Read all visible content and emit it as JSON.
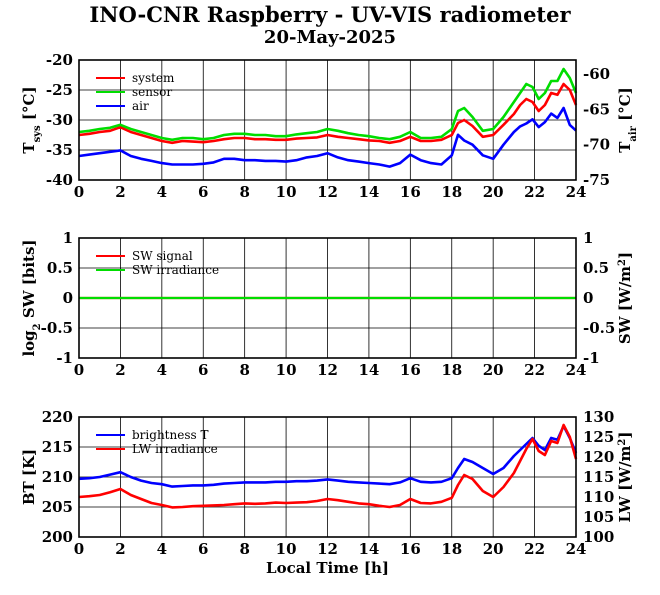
{
  "title": "INO-CNR Raspberry - UV-VIS radiometer",
  "subtitle": "20-May-2025",
  "chart_data": [
    {
      "type": "line",
      "xlabel": "",
      "ylabel": "T_sys [°C]",
      "ylabel_main": "T",
      "ylabel_sub": "sys",
      "ylabel_unit": " [°C]",
      "y2label_main": "T",
      "y2label_sub": "air",
      "y2label_unit": " [°C]",
      "xlim": [
        0,
        24
      ],
      "ylim": [
        -40,
        -20
      ],
      "y2lim": [
        -75,
        -58
      ],
      "xticks": [
        "0",
        "2",
        "4",
        "6",
        "8",
        "10",
        "12",
        "14",
        "16",
        "18",
        "20",
        "22",
        "24"
      ],
      "yticks": [
        "-20",
        "-25",
        "-30",
        "-35",
        "-40"
      ],
      "y2ticks": [
        "-60",
        "-65",
        "-70",
        "-75"
      ],
      "grid": true,
      "legend": "top-left",
      "series": [
        {
          "name": "system",
          "color": "#ff0000",
          "axis": "left",
          "x": [
            0,
            0.5,
            1,
            1.5,
            2,
            2.5,
            3,
            3.5,
            4,
            4.5,
            5,
            5.5,
            6,
            6.5,
            7,
            7.5,
            8,
            8.5,
            9,
            9.5,
            10,
            10.5,
            11,
            11.5,
            12,
            12.5,
            13,
            13.5,
            14,
            14.5,
            15,
            15.5,
            16,
            16.5,
            17,
            17.5,
            18,
            18.3,
            18.6,
            19,
            19.5,
            20,
            20.5,
            21,
            21.3,
            21.6,
            21.9,
            22.2,
            22.5,
            22.8,
            23.1,
            23.4,
            23.7,
            24
          ],
          "y": [
            -32.5,
            -32.3,
            -32,
            -31.8,
            -31.2,
            -32,
            -32.5,
            -33,
            -33.5,
            -33.8,
            -33.5,
            -33.6,
            -33.7,
            -33.5,
            -33.2,
            -33,
            -33,
            -33.2,
            -33.2,
            -33.3,
            -33.3,
            -33.1,
            -33,
            -32.9,
            -32.5,
            -32.8,
            -33,
            -33.2,
            -33.4,
            -33.5,
            -33.8,
            -33.5,
            -32.8,
            -33.5,
            -33.5,
            -33.3,
            -32.5,
            -30.5,
            -30,
            -31,
            -32.8,
            -32.5,
            -30.8,
            -29,
            -27.5,
            -26.5,
            -27,
            -28.5,
            -27.5,
            -25.5,
            -25.8,
            -24,
            -25,
            -27.5
          ]
        },
        {
          "name": "sensor",
          "color": "#00dd00",
          "axis": "left",
          "x": [
            0,
            0.5,
            1,
            1.5,
            2,
            2.5,
            3,
            3.5,
            4,
            4.5,
            5,
            5.5,
            6,
            6.5,
            7,
            7.5,
            8,
            8.5,
            9,
            9.5,
            10,
            10.5,
            11,
            11.5,
            12,
            12.5,
            13,
            13.5,
            14,
            14.5,
            15,
            15.5,
            16,
            16.5,
            17,
            17.5,
            18,
            18.3,
            18.6,
            19,
            19.5,
            20,
            20.5,
            21,
            21.3,
            21.6,
            21.9,
            22.2,
            22.5,
            22.8,
            23.1,
            23.4,
            23.7,
            24
          ],
          "y": [
            -32,
            -31.8,
            -31.5,
            -31.3,
            -30.8,
            -31.5,
            -32,
            -32.5,
            -33,
            -33.3,
            -33,
            -33,
            -33.2,
            -33,
            -32.5,
            -32.3,
            -32.3,
            -32.5,
            -32.5,
            -32.7,
            -32.7,
            -32.4,
            -32.2,
            -32,
            -31.5,
            -31.8,
            -32.2,
            -32.5,
            -32.7,
            -33,
            -33.2,
            -32.8,
            -32,
            -33,
            -33,
            -32.8,
            -31.5,
            -28.5,
            -28,
            -29.5,
            -31.8,
            -31.5,
            -29.5,
            -27,
            -25.5,
            -24,
            -24.5,
            -26.5,
            -25.5,
            -23.5,
            -23.5,
            -21.5,
            -23,
            -25.5
          ]
        },
        {
          "name": "air",
          "color": "#0000ff",
          "axis": "right",
          "x": [
            0,
            0.5,
            1,
            1.5,
            2,
            2.5,
            3,
            3.5,
            4,
            4.5,
            5,
            5.5,
            6,
            6.5,
            7,
            7.5,
            8,
            8.5,
            9,
            9.5,
            10,
            10.5,
            11,
            11.5,
            12,
            12.5,
            13,
            13.5,
            14,
            14.5,
            15,
            15.5,
            16,
            16.5,
            17,
            17.5,
            18,
            18.3,
            18.6,
            19,
            19.5,
            20,
            20.5,
            21,
            21.3,
            21.6,
            21.9,
            22.2,
            22.5,
            22.8,
            23.1,
            23.4,
            23.7,
            24
          ],
          "y": [
            -71.6,
            -71.4,
            -71.2,
            -71,
            -70.8,
            -71.6,
            -72,
            -72.3,
            -72.6,
            -72.8,
            -72.8,
            -72.8,
            -72.7,
            -72.5,
            -72,
            -72,
            -72.2,
            -72.2,
            -72.3,
            -72.3,
            -72.4,
            -72.2,
            -71.8,
            -71.6,
            -71.2,
            -71.8,
            -72.2,
            -72.4,
            -72.6,
            -72.8,
            -73.1,
            -72.6,
            -71.4,
            -72.2,
            -72.6,
            -72.8,
            -71.5,
            -68.6,
            -69.4,
            -70,
            -71.5,
            -72,
            -70,
            -68.2,
            -67.4,
            -67,
            -66.4,
            -67.5,
            -66.8,
            -65.6,
            -66.2,
            -64.8,
            -67.2,
            -68
          ]
        }
      ]
    },
    {
      "type": "line",
      "xlabel": "",
      "ylabel": "log2 SW [bits]",
      "ylabel_main": "log",
      "ylabel_sub": "2",
      "ylabel_unit": " SW [bits]",
      "y2label_main": "SW [W/m",
      "y2label_sup": "2",
      "y2label_unit": "]",
      "xlim": [
        0,
        24
      ],
      "ylim": [
        -1,
        1
      ],
      "y2lim": [
        -1,
        1
      ],
      "xticks": [
        "0",
        "2",
        "4",
        "6",
        "8",
        "10",
        "12",
        "14",
        "16",
        "18",
        "20",
        "22",
        "24"
      ],
      "yticks": [
        "1",
        "0.5",
        "0",
        "-0.5",
        "-1"
      ],
      "y2ticks": [
        "1",
        "0.5",
        "0",
        "-0.5",
        "-1"
      ],
      "grid": true,
      "legend": "top-left",
      "series": [
        {
          "name": "SW signal",
          "color": "#ff0000",
          "axis": "left",
          "x": [
            0,
            24
          ],
          "y": [
            0,
            0
          ]
        },
        {
          "name": "SW irradiance",
          "color": "#00dd00",
          "axis": "right",
          "x": [
            0,
            24
          ],
          "y": [
            0,
            0
          ]
        }
      ]
    },
    {
      "type": "line",
      "xlabel": "Local Time [h]",
      "ylabel": "BT [K]",
      "y2label_main": "LW [W/m",
      "y2label_sup": "2",
      "y2label_unit": "]",
      "xlim": [
        0,
        24
      ],
      "ylim": [
        200,
        220
      ],
      "y2lim": [
        100,
        130
      ],
      "xticks": [
        "0",
        "2",
        "4",
        "6",
        "8",
        "10",
        "12",
        "14",
        "16",
        "18",
        "20",
        "22",
        "24"
      ],
      "yticks": [
        "220",
        "215",
        "210",
        "205",
        "200"
      ],
      "y2ticks": [
        "130",
        "125",
        "120",
        "115",
        "110",
        "105",
        "100"
      ],
      "grid": true,
      "legend": "top-left",
      "series": [
        {
          "name": "brightness T",
          "color": "#0000ff",
          "axis": "left",
          "x": [
            0,
            0.5,
            1,
            1.5,
            2,
            2.5,
            3,
            3.5,
            4,
            4.5,
            5,
            5.5,
            6,
            6.5,
            7,
            7.5,
            8,
            8.5,
            9,
            9.5,
            10,
            10.5,
            11,
            11.5,
            12,
            12.5,
            13,
            13.5,
            14,
            14.5,
            15,
            15.5,
            16,
            16.5,
            17,
            17.5,
            18,
            18.3,
            18.6,
            19,
            19.5,
            20,
            20.5,
            21,
            21.3,
            21.6,
            21.9,
            22.2,
            22.5,
            22.8,
            23.1,
            23.4,
            23.7,
            24
          ],
          "y": [
            209.7,
            209.8,
            210,
            210.4,
            210.8,
            210,
            209.4,
            209,
            208.8,
            208.4,
            208.5,
            208.6,
            208.6,
            208.7,
            208.9,
            209,
            209.1,
            209.1,
            209.1,
            209.2,
            209.2,
            209.3,
            209.3,
            209.4,
            209.6,
            209.4,
            209.2,
            209.1,
            209,
            208.9,
            208.8,
            209.1,
            209.8,
            209.2,
            209.1,
            209.2,
            209.8,
            211.5,
            213,
            212.5,
            211.5,
            210.5,
            211.5,
            213.5,
            214.5,
            215.5,
            216.5,
            215.2,
            214.5,
            216.5,
            216.2,
            218.5,
            216.5,
            214
          ]
        },
        {
          "name": "LW irradiance",
          "color": "#ff0000",
          "axis": "right",
          "x": [
            0,
            0.5,
            1,
            1.5,
            2,
            2.5,
            3,
            3.5,
            4,
            4.5,
            5,
            5.5,
            6,
            6.5,
            7,
            7.5,
            8,
            8.5,
            9,
            9.5,
            10,
            10.5,
            11,
            11.5,
            12,
            12.5,
            13,
            13.5,
            14,
            14.5,
            15,
            15.5,
            16,
            16.5,
            17,
            17.5,
            18,
            18.3,
            18.6,
            19,
            19.5,
            20,
            20.5,
            21,
            21.3,
            21.6,
            21.9,
            22.2,
            22.5,
            22.8,
            23.1,
            23.4,
            23.7,
            24
          ],
          "y": [
            110,
            110.2,
            110.5,
            111.2,
            112,
            110.5,
            109.5,
            108.5,
            108,
            107.4,
            107.5,
            107.7,
            107.8,
            107.9,
            108,
            108.2,
            108.4,
            108.3,
            108.4,
            108.6,
            108.5,
            108.6,
            108.7,
            109,
            109.5,
            109.2,
            108.8,
            108.4,
            108.2,
            107.8,
            107.5,
            108,
            109.5,
            108.5,
            108.4,
            108.8,
            109.8,
            113,
            115.5,
            114.5,
            111.5,
            110,
            112.5,
            116,
            119,
            122,
            124.5,
            121.5,
            120.5,
            124,
            123.5,
            128,
            125,
            119.5
          ]
        }
      ]
    }
  ]
}
